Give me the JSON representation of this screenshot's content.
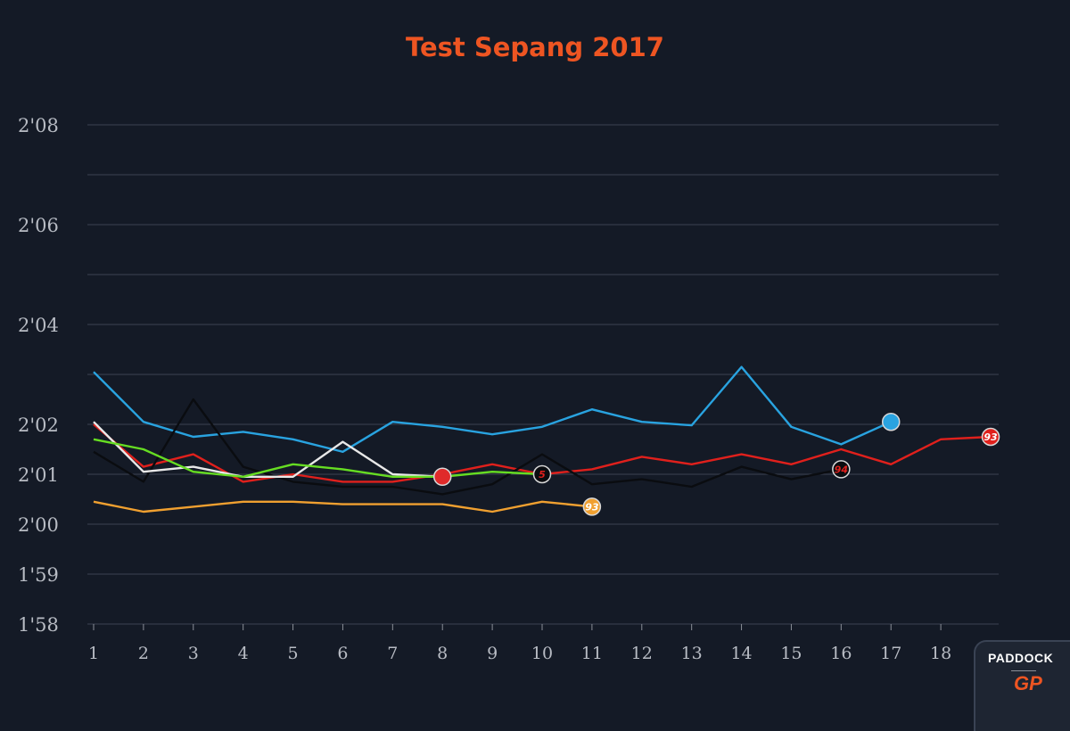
{
  "chart_data": {
    "type": "line",
    "title": "Test Sepang 2017",
    "xlabel": "",
    "ylabel": "",
    "x": [
      1,
      2,
      3,
      4,
      5,
      6,
      7,
      8,
      9,
      10,
      11,
      12,
      13,
      14,
      15,
      16,
      17,
      18,
      19
    ],
    "x_tick_labels": [
      "1",
      "2",
      "3",
      "4",
      "5",
      "6",
      "7",
      "8",
      "9",
      "10",
      "11",
      "12",
      "13",
      "14",
      "15",
      "16",
      "17",
      "18"
    ],
    "ylim": [
      118,
      128
    ],
    "y_ticks": [
      {
        "value": 118,
        "label": "1'58"
      },
      {
        "value": 119,
        "label": "1'59"
      },
      {
        "value": 120,
        "label": "2'00"
      },
      {
        "value": 121,
        "label": "2'01"
      },
      {
        "value": 122,
        "label": "2'02"
      },
      {
        "value": 124,
        "label": "2'04"
      },
      {
        "value": 126,
        "label": "2'06"
      },
      {
        "value": 128,
        "label": "2'08"
      }
    ],
    "gridlines": [
      118,
      119,
      120,
      121,
      122,
      123,
      124,
      125,
      126,
      127,
      128
    ],
    "series": [
      {
        "color": "#29a3e0",
        "marker": "",
        "values": [
          123.05,
          122.05,
          121.75,
          121.85,
          121.7,
          121.45,
          122.05,
          121.95,
          121.8,
          121.95,
          122.3,
          122.05,
          121.98,
          123.15,
          121.95,
          121.6,
          122.05,
          null,
          null
        ]
      },
      {
        "color": "#e0201c",
        "marker": "93",
        "values": [
          122.0,
          121.15,
          121.4,
          120.85,
          121.0,
          120.85,
          120.85,
          121.0,
          121.2,
          121.0,
          121.1,
          121.35,
          121.2,
          121.4,
          121.2,
          121.5,
          121.2,
          121.7,
          121.75
        ]
      },
      {
        "color": "#0a0c10",
        "marker": "94",
        "values": [
          121.45,
          120.85,
          122.5,
          121.15,
          120.85,
          120.75,
          120.75,
          120.6,
          120.8,
          121.4,
          120.8,
          120.9,
          120.75,
          121.15,
          120.9,
          121.1,
          null,
          null,
          null
        ]
      },
      {
        "color": "#e8e8e8",
        "marker": "",
        "values": [
          122.05,
          121.05,
          121.15,
          120.95,
          120.95,
          121.65,
          121.0,
          120.95,
          null,
          null,
          null,
          null,
          null,
          null,
          null,
          null,
          null,
          null,
          null
        ]
      },
      {
        "color": "#66dd22",
        "marker": "5",
        "values": [
          121.7,
          121.5,
          121.05,
          120.95,
          121.2,
          121.1,
          120.95,
          120.95,
          121.05,
          121.0,
          null,
          null,
          null,
          null,
          null,
          null,
          null,
          null,
          null
        ]
      },
      {
        "color": "#f0a030",
        "marker": "93",
        "values": [
          120.45,
          120.25,
          120.35,
          120.45,
          120.45,
          120.4,
          120.4,
          120.4,
          120.25,
          120.45,
          120.35,
          null,
          null,
          null,
          null,
          null,
          null,
          null,
          null
        ]
      }
    ],
    "end_markers": [
      {
        "series": 0,
        "x": 17,
        "label": "",
        "fill": "#29a3e0",
        "text": "#e0201c"
      },
      {
        "series": 1,
        "x": 19,
        "label": "93",
        "fill": "#e0201c",
        "text": "#ffffff"
      },
      {
        "series": 2,
        "x": 16,
        "label": "94",
        "fill": "#0a0c10",
        "text": "#e0201c"
      },
      {
        "series": 3,
        "x": 8,
        "label": "",
        "fill": "#e02a2a",
        "text": "#f5d000"
      },
      {
        "series": 4,
        "x": 10,
        "label": "5",
        "fill": "#0a0c10",
        "text": "#e0201c"
      },
      {
        "series": 5,
        "x": 11,
        "label": "93",
        "fill": "#f0a030",
        "text": "#ffffff"
      }
    ],
    "grid": true,
    "legend": "none",
    "background": "#141a26"
  },
  "logo": {
    "word": "PADDOCK",
    "mark": "GP"
  }
}
